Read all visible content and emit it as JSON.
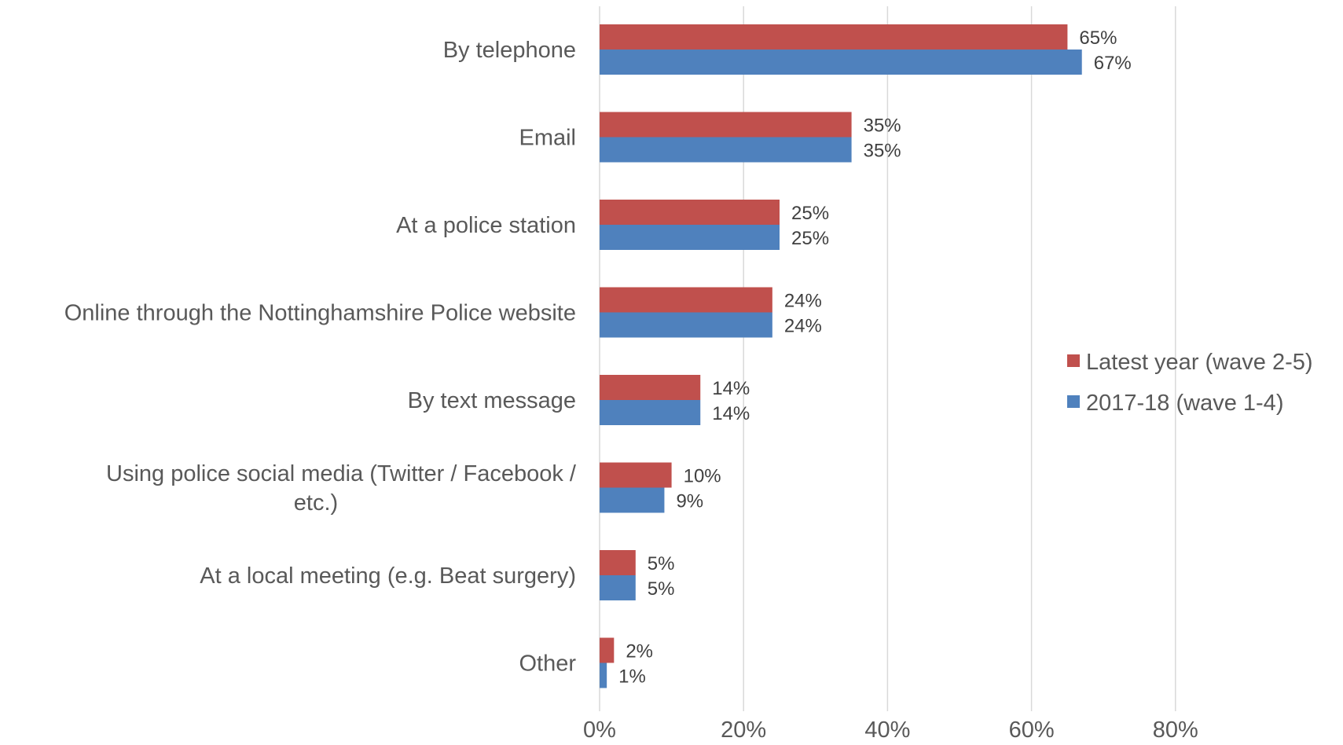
{
  "chart_data": {
    "type": "bar",
    "orientation": "horizontal",
    "title": "",
    "xlabel": "",
    "ylabel": "",
    "categories": [
      "By telephone",
      "Email",
      "At a police station",
      "Online through the Nottinghamshire Police website",
      "By text message",
      "Using police social media (Twitter / Facebook / etc.)",
      "At a local meeting (e.g. Beat surgery)",
      "Other"
    ],
    "category_lines": [
      [
        "By telephone"
      ],
      [
        "Email"
      ],
      [
        "At a police station"
      ],
      [
        "Online through the Nottinghamshire Police website"
      ],
      [
        "By text message"
      ],
      [
        "Using police social media (Twitter / Facebook /",
        "etc.)"
      ],
      [
        "At a local meeting (e.g. Beat surgery)"
      ],
      [
        "Other"
      ]
    ],
    "series": [
      {
        "name": "Latest year (wave 2-5)",
        "color": "#C0504D",
        "values": [
          65,
          35,
          25,
          24,
          14,
          10,
          5,
          2
        ],
        "labels": [
          "65%",
          "35%",
          "25%",
          "24%",
          "14%",
          "10%",
          "5%",
          "2%"
        ]
      },
      {
        "name": "2017-18 (wave 1-4)",
        "color": "#4F81BD",
        "values": [
          67,
          35,
          25,
          24,
          14,
          9,
          5,
          1
        ],
        "labels": [
          "67%",
          "35%",
          "25%",
          "24%",
          "14%",
          "9%",
          "5%",
          "1%"
        ]
      }
    ],
    "xlim": [
      0,
      80
    ],
    "x_ticks": [
      0,
      20,
      40,
      60,
      80
    ],
    "x_tick_labels": [
      "0%",
      "20%",
      "40%",
      "60%",
      "80%"
    ],
    "grid": true,
    "legend_position": "right"
  }
}
